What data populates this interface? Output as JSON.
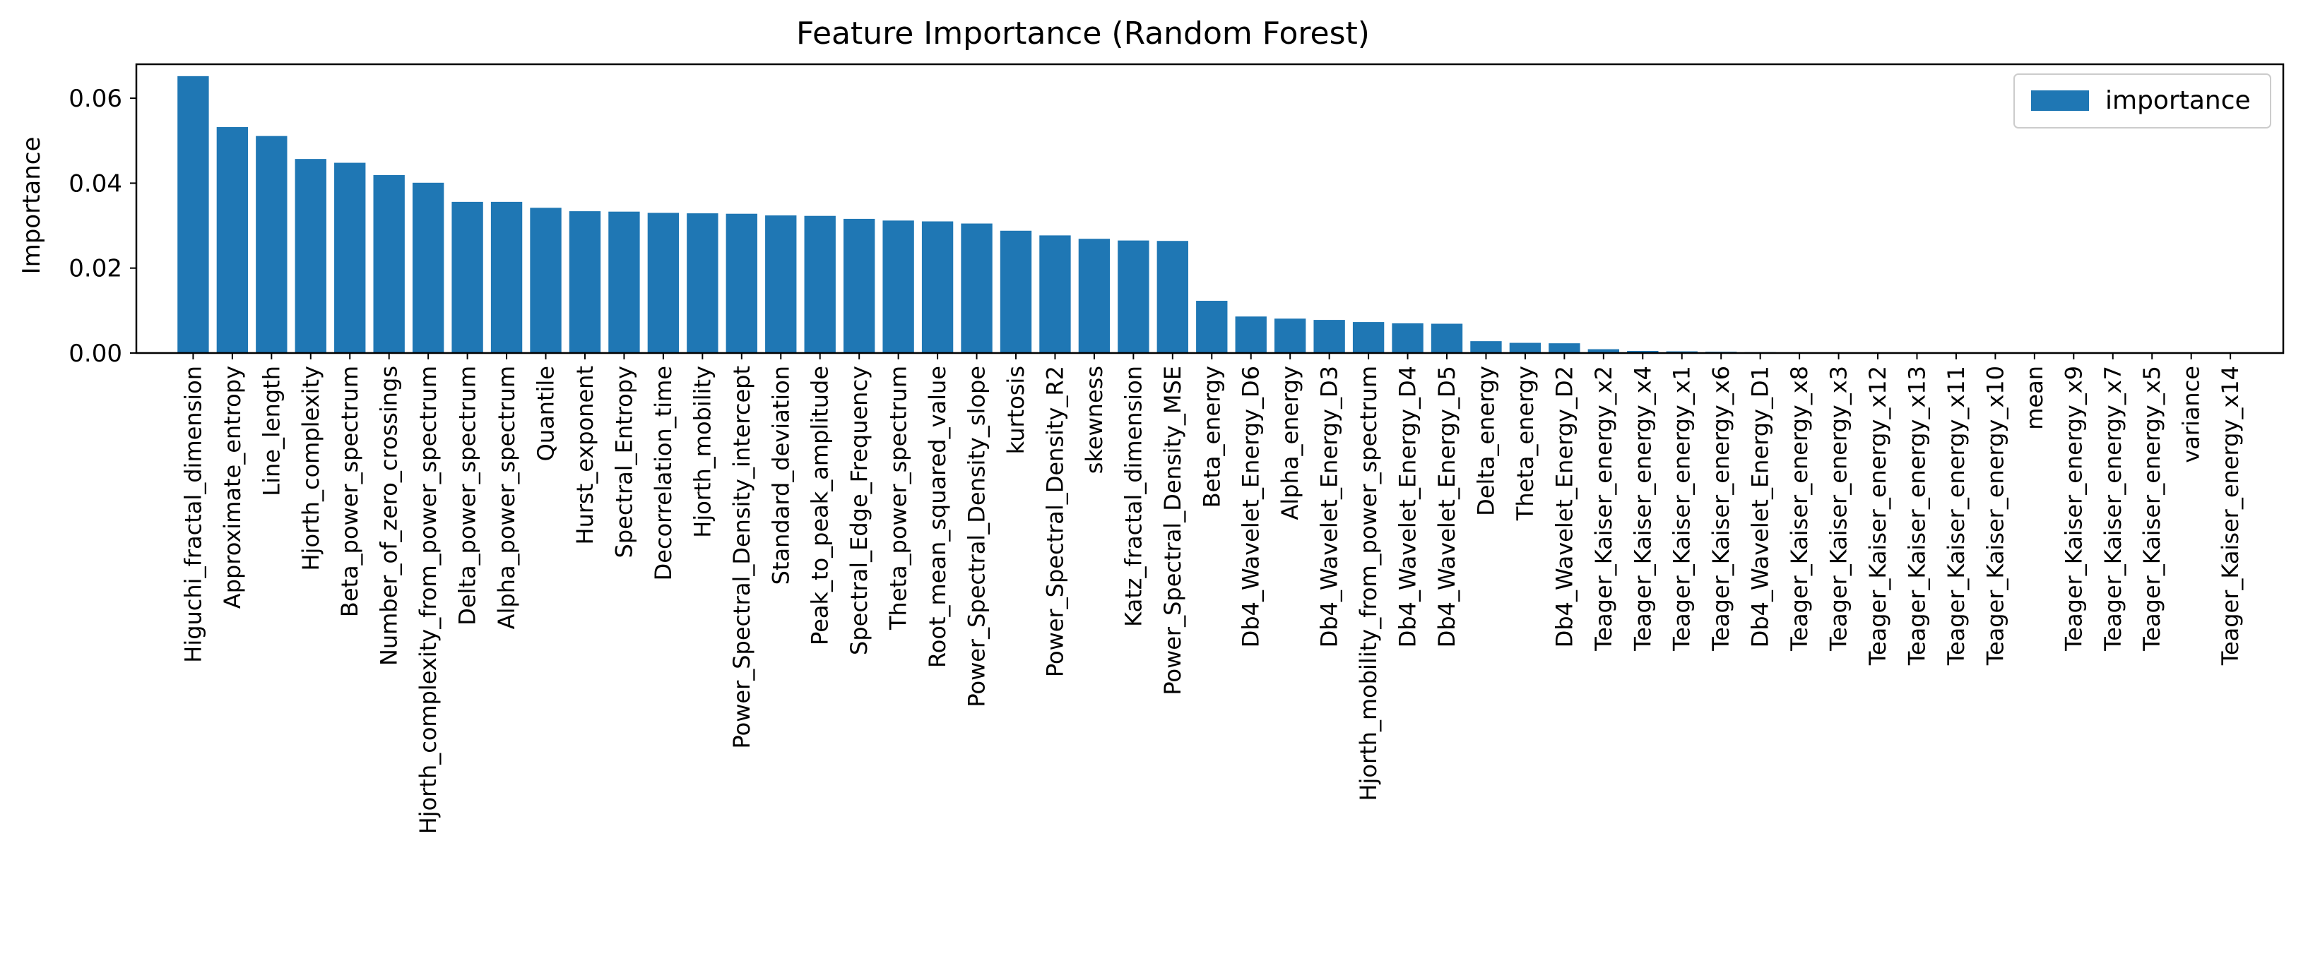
{
  "chart_data": {
    "type": "bar",
    "title": "Feature Importance (Random Forest)",
    "xlabel": "",
    "ylabel": "Importance",
    "ylim": [
      0,
      0.068
    ],
    "yticks": [
      "0.00",
      "0.02",
      "0.04",
      "0.06"
    ],
    "legend_position": "top-right",
    "grid": false,
    "bar_color": "#1f77b4",
    "categories": [
      "Higuchi_fractal_dimension",
      "Approximate_entropy",
      "Line_length",
      "Hjorth_complexity",
      "Beta_power_spectrum",
      "Number_of_zero_crossings",
      "Hjorth_complexity_from_power_spectrum",
      "Delta_power_spectrum",
      "Alpha_power_spectrum",
      "Quantile",
      "Hurst_exponent",
      "Spectral_Entropy",
      "Decorrelation_time",
      "Hjorth_mobility",
      "Power_Spectral_Density_intercept",
      "Standard_deviation",
      "Peak_to_peak_amplitude",
      "Spectral_Edge_Frequency",
      "Theta_power_spectrum",
      "Root_mean_squared_value",
      "Power_Spectral_Density_slope",
      "kurtosis",
      "Power_Spectral_Density_R2",
      "skewness",
      "Katz_fractal_dimension",
      "Power_Spectral_Density_MSE",
      "Beta_energy",
      "Db4_Wavelet_Energy_D6",
      "Alpha_energy",
      "Db4_Wavelet_Energy_D3",
      "Hjorth_mobility_from_power_spectrum",
      "Db4_Wavelet_Energy_D4",
      "Db4_Wavelet_Energy_D5",
      "Delta_energy",
      "Theta_energy",
      "Db4_Wavelet_Energy_D2",
      "Teager_Kaiser_energy_x2",
      "Teager_Kaiser_energy_x4",
      "Teager_Kaiser_energy_x1",
      "Teager_Kaiser_energy_x6",
      "Db4_Wavelet_Energy_D1",
      "Teager_Kaiser_energy_x8",
      "Teager_Kaiser_energy_x3",
      "Teager_Kaiser_energy_x12",
      "Teager_Kaiser_energy_x13",
      "Teager_Kaiser_energy_x11",
      "Teager_Kaiser_energy_x10",
      "mean",
      "Teager_Kaiser_energy_x9",
      "Teager_Kaiser_energy_x7",
      "Teager_Kaiser_energy_x5",
      "variance",
      "Teager_Kaiser_energy_x14"
    ],
    "series": [
      {
        "name": "importance",
        "values": [
          0.0652,
          0.0532,
          0.0511,
          0.0457,
          0.0448,
          0.0419,
          0.0401,
          0.0356,
          0.0356,
          0.0342,
          0.0334,
          0.0333,
          0.033,
          0.0329,
          0.0328,
          0.0324,
          0.0323,
          0.0316,
          0.0312,
          0.031,
          0.0305,
          0.0288,
          0.0277,
          0.0269,
          0.0265,
          0.0264,
          0.0123,
          0.0086,
          0.0081,
          0.0078,
          0.0073,
          0.007,
          0.0069,
          0.0028,
          0.0024,
          0.0023,
          0.0009,
          0.0005,
          0.0004,
          0.0003,
          0.0002,
          0.0001,
          0.0001,
          0.0,
          0.0,
          0.0,
          0.0,
          0.0,
          0.0,
          0.0,
          0.0,
          0.0,
          0.0
        ]
      }
    ]
  }
}
